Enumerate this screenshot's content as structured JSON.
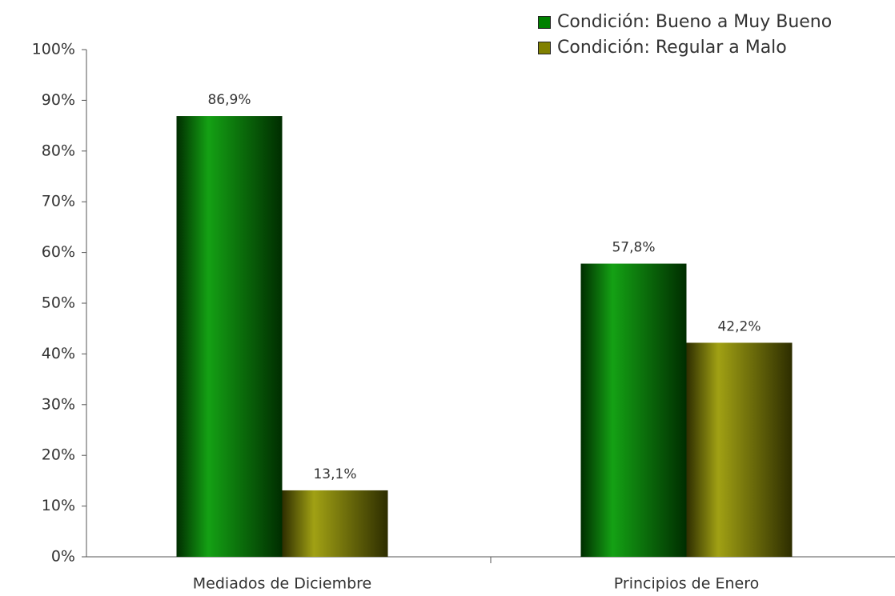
{
  "chart_data": {
    "type": "bar",
    "categories": [
      "Mediados de Diciembre",
      "Principios de Enero"
    ],
    "series": [
      {
        "name": "Condición: Bueno a Muy Bueno",
        "color": "#008000",
        "values": [
          86.9,
          57.8
        ],
        "value_labels": [
          "86,9%",
          "57,8%"
        ]
      },
      {
        "name": "Condición: Regular a Malo",
        "color": "#808000",
        "values": [
          13.1,
          42.2
        ],
        "value_labels": [
          "13,1%",
          "42,2%"
        ]
      }
    ],
    "ylim": [
      0,
      100
    ],
    "yticks": [
      {
        "value": 0,
        "label": "0%"
      },
      {
        "value": 10,
        "label": "10%"
      },
      {
        "value": 20,
        "label": "20%"
      },
      {
        "value": 30,
        "label": "30%"
      },
      {
        "value": 40,
        "label": "40%"
      },
      {
        "value": 50,
        "label": "50%"
      },
      {
        "value": 60,
        "label": "60%"
      },
      {
        "value": 70,
        "label": "70%"
      },
      {
        "value": 80,
        "label": "80%"
      },
      {
        "value": 90,
        "label": "90%"
      },
      {
        "value": 100,
        "label": "100%"
      }
    ],
    "grid": false,
    "legend": "top-right"
  }
}
